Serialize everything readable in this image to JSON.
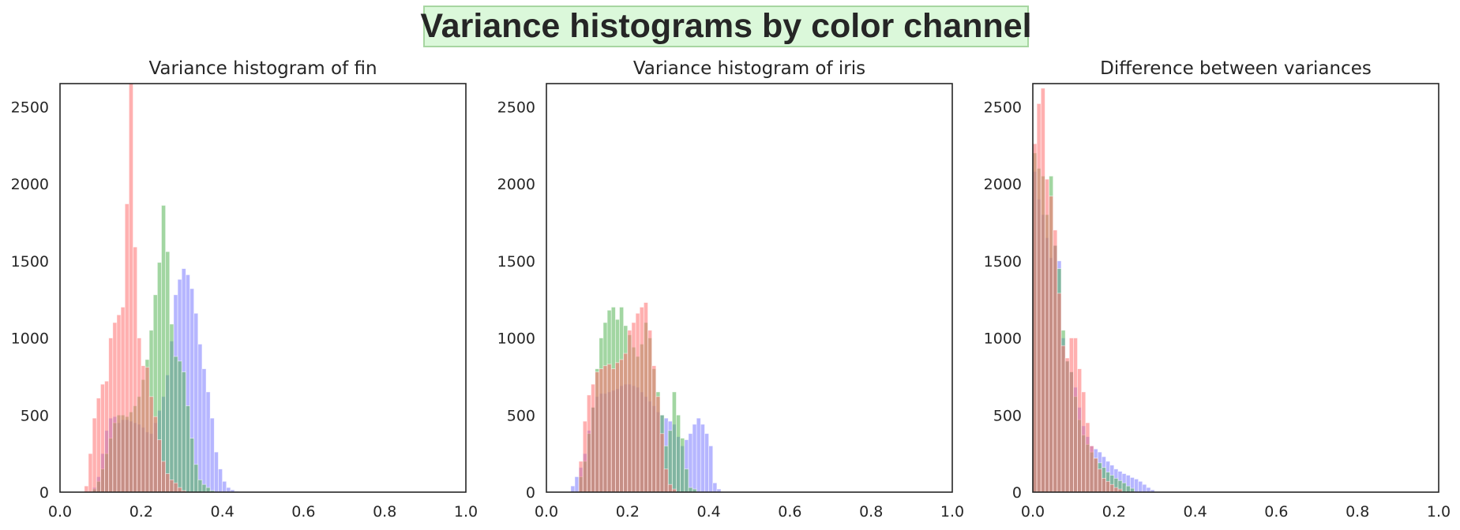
{
  "suptitle": "Variance histograms by color channel",
  "colors": {
    "red": "#ff6f6f",
    "green": "#55b455",
    "blue": "#7a7aff"
  },
  "chart_data": [
    {
      "type": "bar",
      "title": "Variance histogram of fin",
      "xlim": [
        0.0,
        1.0
      ],
      "ylim": [
        0,
        2650
      ],
      "xticks": [
        "0.0",
        "0.2",
        "0.4",
        "0.6",
        "0.8",
        "1.0"
      ],
      "yticks": [
        "0",
        "500",
        "1000",
        "1500",
        "2000",
        "2500"
      ],
      "bin_width": 0.01,
      "series": [
        {
          "color": "blue",
          "bin_start": 0.08,
          "values": [
            30,
            100,
            250,
            400,
            480,
            490,
            450,
            470,
            470,
            460,
            450,
            440,
            420,
            390,
            380,
            450,
            530,
            620,
            760,
            980,
            1280,
            1380,
            1450,
            1410,
            1320,
            1160,
            960,
            800,
            650,
            480,
            260,
            150,
            70,
            30,
            15,
            5
          ]
        },
        {
          "color": "green",
          "bin_start": 0.08,
          "values": [
            20,
            70,
            150,
            250,
            350,
            450,
            500,
            500,
            490,
            520,
            560,
            620,
            730,
            860,
            1050,
            1280,
            1490,
            1860,
            1560,
            1090,
            880,
            850,
            780,
            560,
            350,
            180,
            80,
            50,
            30,
            10
          ]
        },
        {
          "color": "red",
          "bin_start": 0.06,
          "values": [
            40,
            250,
            480,
            610,
            700,
            720,
            1000,
            1100,
            1150,
            1200,
            1870,
            2650,
            1590,
            1000,
            820,
            810,
            620,
            490,
            340,
            200,
            120,
            80,
            60,
            30,
            10
          ]
        }
      ]
    },
    {
      "type": "bar",
      "title": "Variance histogram of iris",
      "xlim": [
        0.0,
        1.0
      ],
      "ylim": [
        0,
        2650
      ],
      "xticks": [
        "0.0",
        "0.2",
        "0.4",
        "0.6",
        "0.8",
        "1.0"
      ],
      "yticks": [
        "0",
        "500",
        "1000",
        "1500",
        "2000",
        "2500"
      ],
      "bin_width": 0.01,
      "series": [
        {
          "color": "blue",
          "bin_start": 0.06,
          "values": [
            40,
            100,
            160,
            250,
            400,
            550,
            620,
            640,
            640,
            650,
            660,
            670,
            690,
            700,
            700,
            690,
            680,
            650,
            620,
            590,
            560,
            520,
            500,
            480,
            460,
            440,
            360,
            300,
            340,
            380,
            440,
            480,
            440,
            380,
            300,
            60,
            20
          ]
        },
        {
          "color": "green",
          "bin_start": 0.08,
          "values": [
            100,
            200,
            380,
            550,
            800,
            1000,
            1100,
            1180,
            1200,
            1120,
            1200,
            1080,
            1020,
            940,
            880,
            960,
            1100,
            1000,
            800,
            650,
            500,
            300,
            400,
            650,
            500,
            350,
            150,
            30,
            20
          ]
        },
        {
          "color": "red",
          "bin_start": 0.08,
          "values": [
            200,
            460,
            630,
            700,
            780,
            800,
            820,
            830,
            800,
            840,
            860,
            900,
            1050,
            1100,
            1160,
            1200,
            1230,
            1050,
            820,
            620,
            380,
            150,
            50,
            20
          ]
        }
      ]
    },
    {
      "type": "bar",
      "title": "Difference between variances",
      "xlim": [
        0.0,
        1.0
      ],
      "ylim": [
        0,
        2650
      ],
      "xticks": [
        "0.0",
        "0.2",
        "0.4",
        "0.6",
        "0.8",
        "1.0"
      ],
      "yticks": [
        "0",
        "500",
        "1000",
        "1500",
        "2000",
        "2500"
      ],
      "bin_width": 0.01,
      "series": [
        {
          "color": "blue",
          "bin_start": 0.0,
          "values": [
            2080,
            1900,
            1800,
            1650,
            1520,
            1600,
            1500,
            1000,
            850,
            780,
            680,
            550,
            430,
            360,
            300,
            280,
            260,
            230,
            200,
            175,
            150,
            135,
            120,
            110,
            95,
            85,
            70,
            50,
            30,
            15
          ]
        },
        {
          "color": "green",
          "bin_start": 0.0,
          "values": [
            2200,
            2100,
            2050,
            1800,
            2050,
            1600,
            1450,
            1050,
            850,
            780,
            620,
            470,
            370,
            310,
            260,
            220,
            190,
            160,
            130,
            110,
            90,
            75,
            60,
            40,
            25
          ]
        },
        {
          "color": "red",
          "bin_start": 0.0,
          "values": [
            2260,
            2520,
            2620,
            2030,
            1920,
            1700,
            1290,
            950,
            870,
            1000,
            1000,
            800,
            650,
            450,
            300,
            220,
            150,
            90,
            70,
            50,
            30,
            20
          ]
        }
      ]
    }
  ]
}
